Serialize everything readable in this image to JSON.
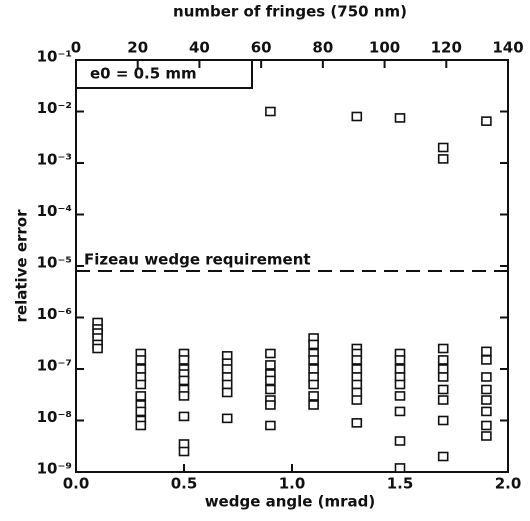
{
  "chart_data": {
    "type": "scatter",
    "log_y": true,
    "xlabel": "wedge angle (mrad)",
    "ylabel": "relative error",
    "x2label": "number of fringes (750 nm)",
    "xlim": [
      0,
      2
    ],
    "xticks": [
      {
        "value": 0,
        "label": "0.0"
      },
      0.5,
      {
        "value": 1,
        "label": "1.0"
      },
      1.5,
      {
        "value": 2,
        "label": "2.0"
      }
    ],
    "x2lim": [
      0,
      140
    ],
    "x2ticks": [
      0,
      20,
      40,
      60,
      80,
      100,
      120,
      140
    ],
    "ylim": [
      1e-09,
      0.1
    ],
    "yticks": [
      {
        "value": 0.1,
        "label": "10⁻¹"
      },
      {
        "value": 0.01,
        "label": "10⁻²"
      },
      {
        "value": 0.001,
        "label": "10⁻³"
      },
      {
        "value": 0.0001,
        "label": "10⁻⁴"
      },
      {
        "value": 1e-05,
        "label": "10⁻⁵"
      },
      {
        "value": 1e-06,
        "label": "10⁻⁶"
      },
      {
        "value": 1e-07,
        "label": "10⁻⁷"
      },
      {
        "value": 1e-08,
        "label": "10⁻⁸"
      },
      {
        "value": 1e-09,
        "label": "10⁻⁹"
      }
    ],
    "annotation": "e0 = 0.5 mm",
    "reference_line": {
      "label": "Fizeau wedge requirement",
      "value": 8e-06
    },
    "color": "#111111",
    "x": [
      0.9,
      1.3,
      1.5,
      1.7,
      1.7,
      1.9,
      0.1,
      0.1,
      0.1,
      0.1,
      0.1,
      0.1,
      0.3,
      0.3,
      0.3,
      0.3,
      0.3,
      0.3,
      0.3,
      0.3,
      0.3,
      0.3,
      0.5,
      0.5,
      0.5,
      0.5,
      0.5,
      0.5,
      0.5,
      0.5,
      0.5,
      0.5,
      0.7,
      0.7,
      0.7,
      0.7,
      0.7,
      0.7,
      0.7,
      0.9,
      0.9,
      0.9,
      0.9,
      0.9,
      0.9,
      0.9,
      0.9,
      1.1,
      1.1,
      1.1,
      1.1,
      1.1,
      1.1,
      1.1,
      1.1,
      1.1,
      1.3,
      1.3,
      1.3,
      1.3,
      1.3,
      1.3,
      1.3,
      1.3,
      1.3,
      1.5,
      1.5,
      1.5,
      1.5,
      1.5,
      1.5,
      1.5,
      1.5,
      1.5,
      1.7,
      1.7,
      1.7,
      1.7,
      1.7,
      1.7,
      1.7,
      1.7,
      1.9,
      1.9,
      1.9,
      1.9,
      1.9,
      1.9,
      1.9,
      1.9
    ],
    "y": [
      0.01,
      0.008,
      0.0075,
      0.002,
      0.0012,
      0.0065,
      8e-07,
      6e-07,
      5e-07,
      4e-07,
      3e-07,
      2.5e-07,
      2e-07,
      1.5e-07,
      1e-07,
      7e-08,
      5e-08,
      3e-08,
      2e-08,
      1.5e-08,
      1e-08,
      8e-09,
      2e-07,
      1.5e-07,
      1e-07,
      8e-08,
      6e-08,
      4e-08,
      3e-08,
      1.2e-08,
      3.5e-09,
      2.5e-09,
      1.8e-07,
      1.3e-07,
      1e-07,
      7e-08,
      5e-08,
      3.5e-08,
      1.1e-08,
      2e-07,
      1.2e-07,
      8e-08,
      6e-08,
      4e-08,
      2.5e-08,
      2e-08,
      8e-09,
      4e-07,
      3e-07,
      2e-07,
      1.5e-07,
      1e-07,
      7e-08,
      5e-08,
      3e-08,
      2e-08,
      2.5e-07,
      2e-07,
      1.5e-07,
      1e-07,
      7e-08,
      5e-08,
      3.5e-08,
      2.5e-08,
      9e-09,
      2e-07,
      1.5e-07,
      1e-07,
      7e-08,
      5e-08,
      3e-08,
      1.5e-08,
      4e-09,
      1.2e-09,
      2.5e-07,
      1.5e-07,
      1e-07,
      7e-08,
      4e-08,
      2.5e-08,
      1e-08,
      2e-09,
      2.2e-07,
      1.5e-07,
      7e-08,
      4e-08,
      2.5e-08,
      1.5e-08,
      8e-09,
      5e-09
    ]
  }
}
